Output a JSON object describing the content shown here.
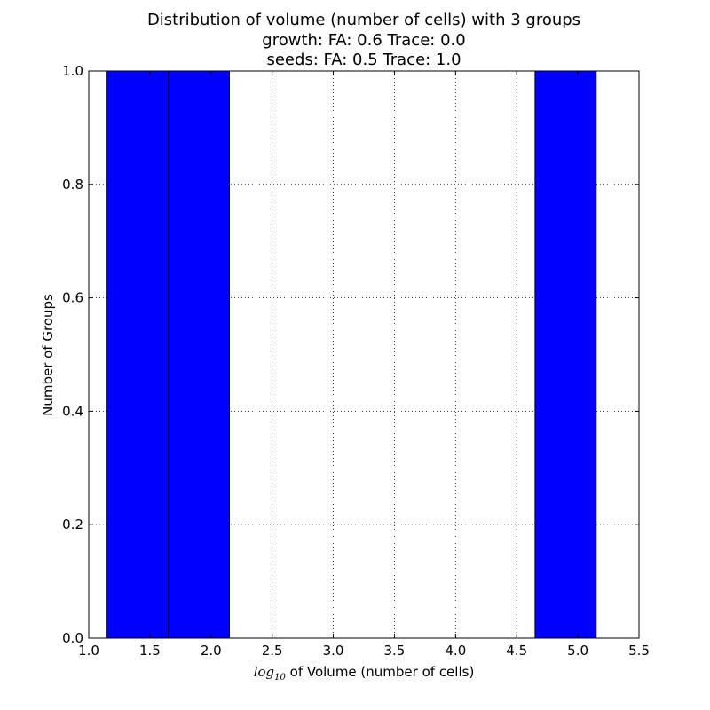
{
  "chart_data": {
    "type": "bar",
    "title_lines": [
      "Distribution of volume (number of cells) with 3 groups",
      "growth: FA: 0.6 Trace: 0.0",
      "seeds: FA: 0.5 Trace: 1.0"
    ],
    "xlabel_math": "log",
    "xlabel_math_sub": "10",
    "xlabel_rest": " of Volume (number of cells)",
    "ylabel": "Number of Groups",
    "xlim": [
      1.0,
      5.5
    ],
    "ylim": [
      0.0,
      1.0
    ],
    "x_ticks": [
      "1.0",
      "1.5",
      "2.0",
      "2.5",
      "3.0",
      "3.5",
      "4.0",
      "4.5",
      "5.0",
      "5.5"
    ],
    "y_ticks": [
      "0.0",
      "0.2",
      "0.4",
      "0.6",
      "0.8",
      "1.0"
    ],
    "grid": true,
    "bar_color": "#0000ff",
    "bars": [
      {
        "x0": 1.15,
        "x1": 1.65,
        "value": 1
      },
      {
        "x0": 1.65,
        "x1": 2.15,
        "value": 1
      },
      {
        "x0": 4.65,
        "x1": 5.15,
        "value": 1
      }
    ]
  }
}
